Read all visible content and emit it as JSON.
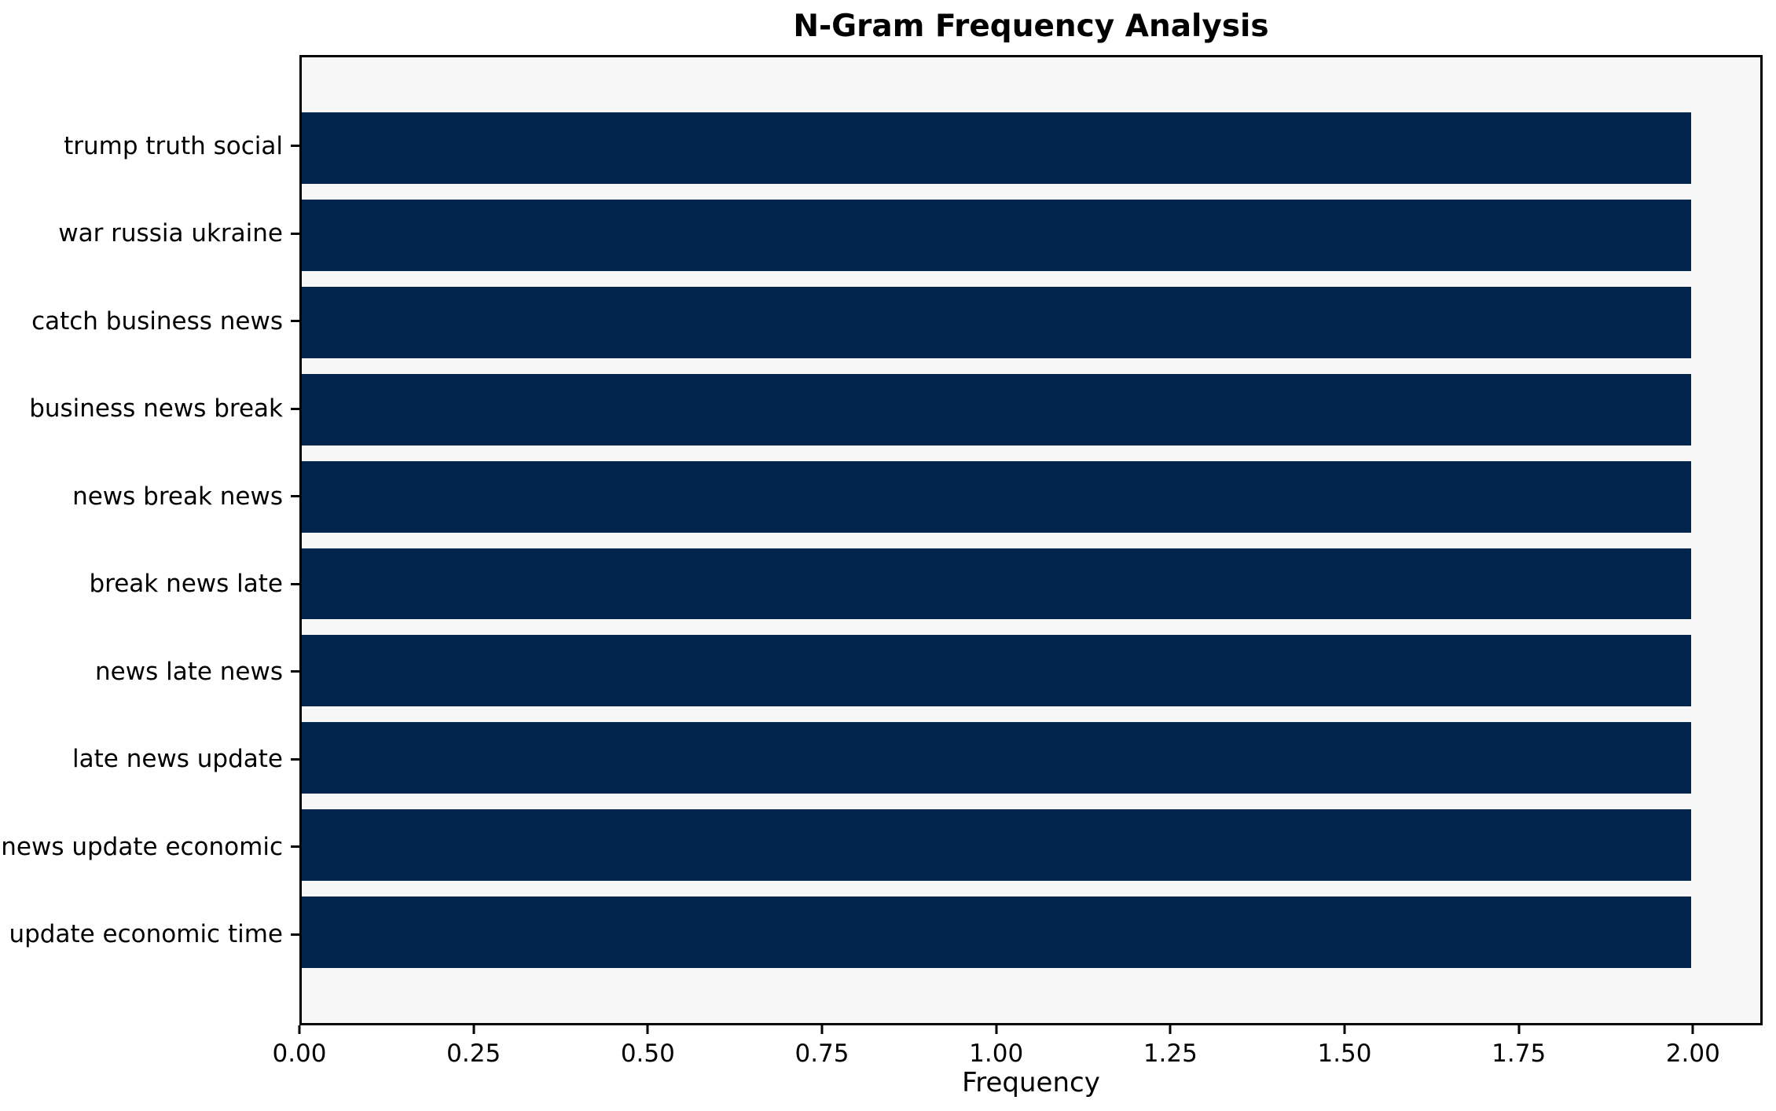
{
  "chart_data": {
    "type": "bar",
    "orientation": "horizontal",
    "title": "N-Gram Frequency Analysis",
    "xlabel": "Frequency",
    "ylabel": "",
    "categories": [
      "trump truth social",
      "war russia ukraine",
      "catch business news",
      "business news break",
      "news break news",
      "break news late",
      "news late news",
      "late news update",
      "news update economic",
      "update economic time"
    ],
    "values": [
      2,
      2,
      2,
      2,
      2,
      2,
      2,
      2,
      2,
      2
    ],
    "x_ticks": [
      "0.00",
      "0.25",
      "0.50",
      "0.75",
      "1.00",
      "1.25",
      "1.50",
      "1.75",
      "2.00"
    ],
    "xlim": [
      0,
      2.1
    ],
    "grid": false,
    "legend_position": "none",
    "colors": {
      "bar": "#02254d",
      "plot_background": "#f7f7f7",
      "figure_background": "#ffffff",
      "spine": "#000000",
      "text": "#000000"
    }
  }
}
